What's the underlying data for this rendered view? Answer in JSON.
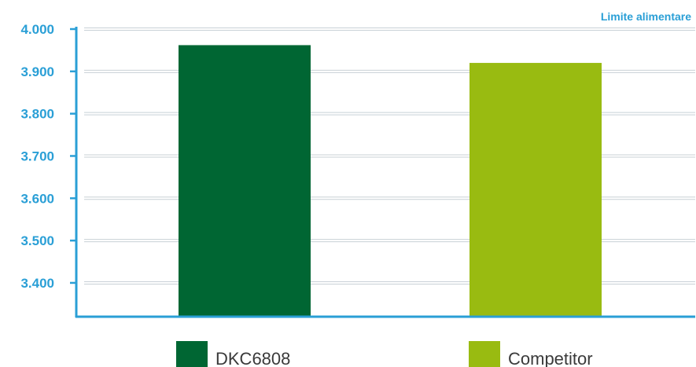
{
  "chart_data": {
    "type": "bar",
    "categories": [
      "DKC6808",
      "Competitor"
    ],
    "values": [
      3962,
      3920
    ],
    "ylabel": "Limite alimentare",
    "ylim": [
      3320,
      4000
    ],
    "yticks": [
      4000,
      3900,
      3800,
      3700,
      3600,
      3500,
      3400
    ],
    "ytick_labels": [
      "4.000",
      "3.900",
      "3.800",
      "3.700",
      "3.600",
      "3.500",
      "3.400"
    ],
    "grid": true,
    "legend_position": "bottom",
    "colors": {
      "DKC6808": "#006633",
      "Competitor": "#99bb11",
      "axis": "#2a9fd6",
      "grid": "#c8d0d6"
    }
  }
}
